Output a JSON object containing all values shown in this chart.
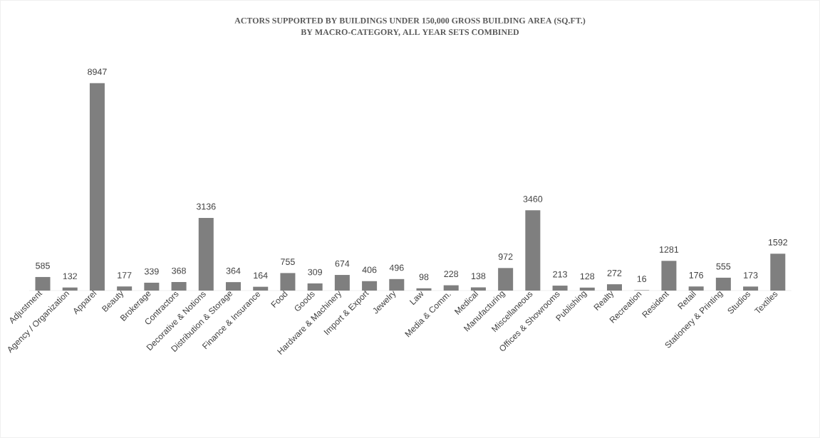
{
  "chart_data": {
    "type": "bar",
    "title": "ACTORS SUPPORTED BY BUILDINGS UNDER 150,000 GROSS BUILDING AREA (SQ.FT.)",
    "subtitle": "BY MACRO-CATEGORY, ALL YEAR SETS COMBINED",
    "categories": [
      "Adjustment",
      "Agency / Organization",
      "Apparel",
      "Beauty",
      "Brokerage",
      "Contractors",
      "Decorative & Notions",
      "Distribution & Storage",
      "Finance & Insurance",
      "Food",
      "Goods",
      "Hardware & Machinery",
      "Import & Export",
      "Jewelry",
      "Law",
      "Media & Comm.",
      "Medical",
      "Manufacturing",
      "Miscellaneous",
      "Offices & Showrooms",
      "Publishing",
      "Realty",
      "Recreation",
      "Resident",
      "Retail",
      "Stationery & Printing",
      "Studios",
      "Textiles"
    ],
    "values": [
      585,
      132,
      8947,
      177,
      339,
      368,
      3136,
      364,
      164,
      755,
      309,
      674,
      406,
      496,
      98,
      228,
      138,
      972,
      3460,
      213,
      128,
      272,
      16,
      1281,
      176,
      555,
      173,
      1592
    ],
    "color": "#7f7f7f",
    "data_labels": true
  }
}
